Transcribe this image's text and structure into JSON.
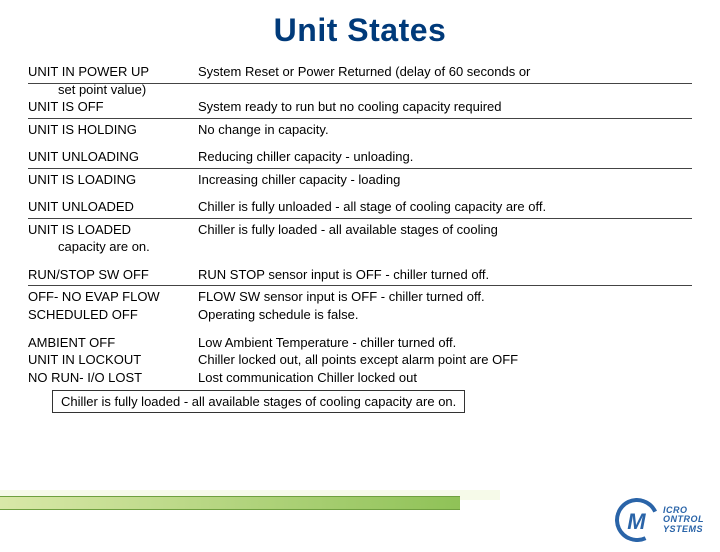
{
  "title": "Unit States",
  "rows": [
    {
      "left": "UNIT IN POWER UP",
      "leftExtra": "set point value)",
      "right": "System Reset or Power Returned (delay of 60 seconds or",
      "dividerAfterExtra": true
    },
    {
      "left": "UNIT IS OFF",
      "right": "System ready to run but no cooling capacity required",
      "divider": true
    },
    {
      "left": "UNIT IS HOLDING",
      "right": "No change in capacity.",
      "gap": true
    },
    {
      "left": "UNIT UNLOADING",
      "right": "Reducing chiller capacity - unloading.",
      "divider": true
    },
    {
      "left": "UNIT IS LOADING",
      "right": "Increasing chiller capacity - loading",
      "gap": true
    },
    {
      "left": "UNIT UNLOADED",
      "right": "Chiller is fully unloaded - all stage of cooling capacity are off.",
      "divider": true
    },
    {
      "left": "UNIT IS LOADED",
      "right": "Chiller is fully loaded - all available stages of cooling",
      "leftExtra2": "capacity are on.",
      "gap": true
    },
    {
      "left": "RUN/STOP SW OFF",
      "right": "RUN STOP sensor input is OFF - chiller turned off.",
      "divider": true
    },
    {
      "left": "OFF- NO EVAP FLOW",
      "right": "FLOW SW sensor input is OFF - chiller turned off."
    },
    {
      "left": "SCHEDULED OFF",
      "right": "Operating schedule is false.",
      "gap": true
    },
    {
      "left": "AMBIENT OFF",
      "right": "Low Ambient Temperature - chiller turned off."
    },
    {
      "left": "UNIT IN LOCKOUT",
      "right": "Chiller locked out, all points except alarm point are OFF"
    },
    {
      "left": "NO RUN- I/O LOST",
      "right": "Lost communication Chiller locked out"
    }
  ],
  "boxnote": "Chiller is fully loaded - all available stages of cooling capacity are on.",
  "logo": {
    "line1": "ICRO",
    "line2": "ONTROL",
    "line3": "YSTEMS"
  }
}
